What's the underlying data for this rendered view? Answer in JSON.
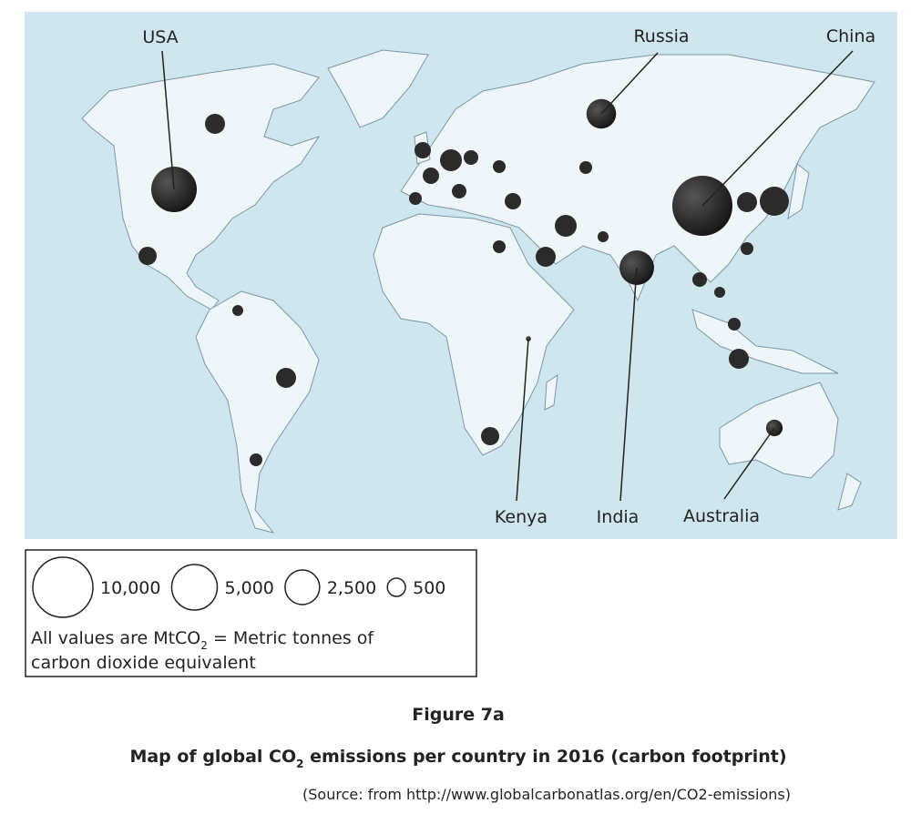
{
  "map": {
    "countries": [
      {
        "name": "USA",
        "value": 5000
      },
      {
        "name": "Russia",
        "value": 1700
      },
      {
        "name": "China",
        "value": 10000
      },
      {
        "name": "Kenya",
        "value": 20
      },
      {
        "name": "India",
        "value": 2500
      },
      {
        "name": "Australia",
        "value": 400
      }
    ],
    "legend": {
      "entries": [
        {
          "value": 10000,
          "label": "10,000"
        },
        {
          "value": 5000,
          "label": "5,000"
        },
        {
          "value": 2500,
          "label": "2,500"
        },
        {
          "value": 500,
          "label": "500"
        }
      ],
      "note": [
        "All values are MtCO",
        "2",
        " = Metric tonnes of",
        "carbon dioxide equivalent"
      ]
    }
  },
  "figure": {
    "label": "Figure 7a",
    "caption": [
      "Map of global CO",
      "2",
      " emissions per country in 2016 (carbon footprint)"
    ],
    "source": "(Source: from http://www.globalcarbonatlas.org/en/CO2-emissions)"
  }
}
